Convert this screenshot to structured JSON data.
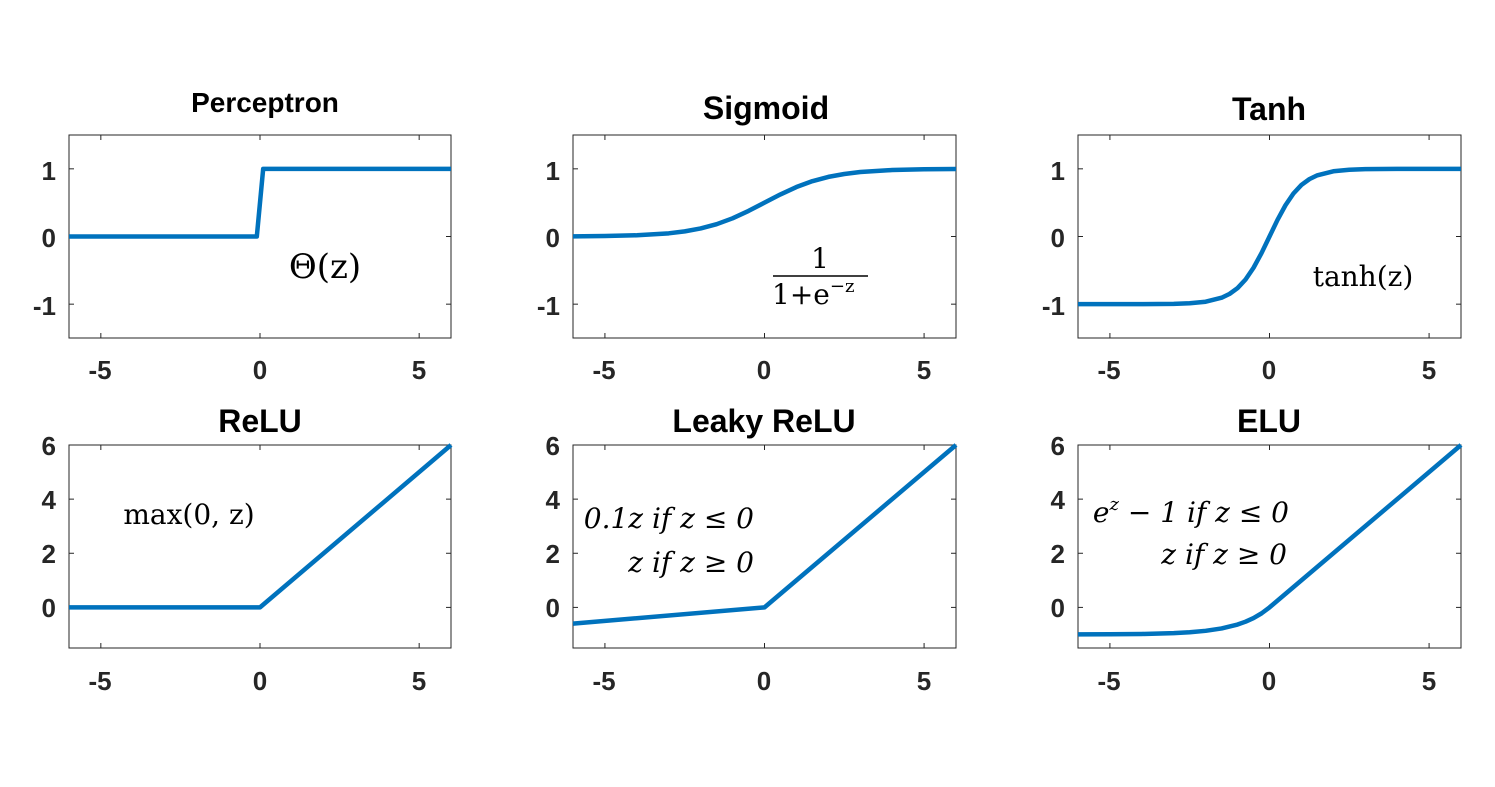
{
  "chart_data": [
    {
      "type": "line",
      "title": "Perceptron",
      "xlim": [
        -6,
        6
      ],
      "ylim": [
        -1.5,
        1.5
      ],
      "xticks": [
        -5,
        0,
        5
      ],
      "yticks": [
        -1,
        0,
        1
      ],
      "xtick_labels": [
        "-5",
        "0",
        "5"
      ],
      "ytick_labels": [
        "-1",
        "0",
        "1"
      ],
      "x": [
        -6,
        -0.1,
        0.1,
        6
      ],
      "y": [
        0,
        0,
        1,
        1
      ],
      "annotation": {
        "text": "Θ(z)"
      },
      "color": "#0072bd"
    },
    {
      "type": "line",
      "title": "Sigmoid",
      "xlim": [
        -6,
        6
      ],
      "ylim": [
        -1.5,
        1.5
      ],
      "xticks": [
        -5,
        0,
        5
      ],
      "yticks": [
        -1,
        0,
        1
      ],
      "xtick_labels": [
        "-5",
        "0",
        "5"
      ],
      "ytick_labels": [
        "-1",
        "0",
        "1"
      ],
      "x": [
        -6,
        -5,
        -4,
        -3,
        -2.5,
        -2,
        -1.5,
        -1,
        -0.5,
        0,
        0.5,
        1,
        1.5,
        2,
        2.5,
        3,
        4,
        5,
        6
      ],
      "y": [
        0.002,
        0.007,
        0.018,
        0.047,
        0.076,
        0.119,
        0.182,
        0.269,
        0.378,
        0.5,
        0.622,
        0.731,
        0.818,
        0.881,
        0.924,
        0.953,
        0.982,
        0.993,
        0.998
      ],
      "annotation": {
        "numerator": "1",
        "denominator_base": "1+e",
        "denominator_exp": "−z"
      },
      "color": "#0072bd"
    },
    {
      "type": "line",
      "title": "Tanh",
      "xlim": [
        -6,
        6
      ],
      "ylim": [
        -1.5,
        1.5
      ],
      "xticks": [
        -5,
        0,
        5
      ],
      "yticks": [
        -1,
        0,
        1
      ],
      "xtick_labels": [
        "-5",
        "0",
        "5"
      ],
      "ytick_labels": [
        "-1",
        "0",
        "1"
      ],
      "x": [
        -6,
        -4,
        -3,
        -2.5,
        -2,
        -1.5,
        -1.25,
        -1,
        -0.75,
        -0.5,
        -0.25,
        0,
        0.25,
        0.5,
        0.75,
        1,
        1.25,
        1.5,
        2,
        2.5,
        3,
        4,
        6
      ],
      "y": [
        -1,
        -0.999,
        -0.995,
        -0.987,
        -0.964,
        -0.905,
        -0.848,
        -0.762,
        -0.635,
        -0.462,
        -0.245,
        0,
        0.245,
        0.462,
        0.635,
        0.762,
        0.848,
        0.905,
        0.964,
        0.987,
        0.995,
        0.999,
        1
      ],
      "annotation": {
        "text": "tanh(z)"
      },
      "color": "#0072bd"
    },
    {
      "type": "line",
      "title": "ReLU",
      "xlim": [
        -6,
        6
      ],
      "ylim": [
        -1.5,
        6
      ],
      "xticks": [
        -5,
        0,
        5
      ],
      "yticks": [
        0,
        2,
        4,
        6
      ],
      "xtick_labels": [
        "-5",
        "0",
        "5"
      ],
      "ytick_labels": [
        "0",
        "2",
        "4",
        "6"
      ],
      "x": [
        -6,
        0,
        6
      ],
      "y": [
        0,
        0,
        6
      ],
      "annotation": {
        "text": "max(0, z)"
      },
      "color": "#0072bd"
    },
    {
      "type": "line",
      "title": "Leaky ReLU",
      "xlim": [
        -6,
        6
      ],
      "ylim": [
        -1.5,
        6
      ],
      "xticks": [
        -5,
        0,
        5
      ],
      "yticks": [
        0,
        2,
        4,
        6
      ],
      "xtick_labels": [
        "-5",
        "0",
        "5"
      ],
      "ytick_labels": [
        "0",
        "2",
        "4",
        "6"
      ],
      "x": [
        -6,
        0,
        6
      ],
      "y": [
        -0.6,
        0,
        6
      ],
      "annotation": {
        "line1": "0.1z if z ≤ 0",
        "line2": "z if z ≥ 0"
      },
      "color": "#0072bd"
    },
    {
      "type": "line",
      "title": "ELU",
      "xlim": [
        -6,
        6
      ],
      "ylim": [
        -1.5,
        6
      ],
      "xticks": [
        -5,
        0,
        5
      ],
      "yticks": [
        0,
        2,
        4,
        6
      ],
      "xtick_labels": [
        "-5",
        "0",
        "5"
      ],
      "ytick_labels": [
        "0",
        "2",
        "4",
        "6"
      ],
      "x": [
        -6,
        -5,
        -4,
        -3,
        -2.5,
        -2,
        -1.5,
        -1,
        -0.75,
        -0.5,
        -0.25,
        0,
        6
      ],
      "y": [
        -0.998,
        -0.993,
        -0.982,
        -0.95,
        -0.918,
        -0.865,
        -0.777,
        -0.632,
        -0.528,
        -0.393,
        -0.221,
        0,
        6
      ],
      "annotation": {
        "line1_base": "e",
        "line1_exp": "z",
        "line1_rest": " − 1 if z ≤ 0",
        "line2": "z if z ≥ 0"
      },
      "color": "#0072bd"
    }
  ]
}
